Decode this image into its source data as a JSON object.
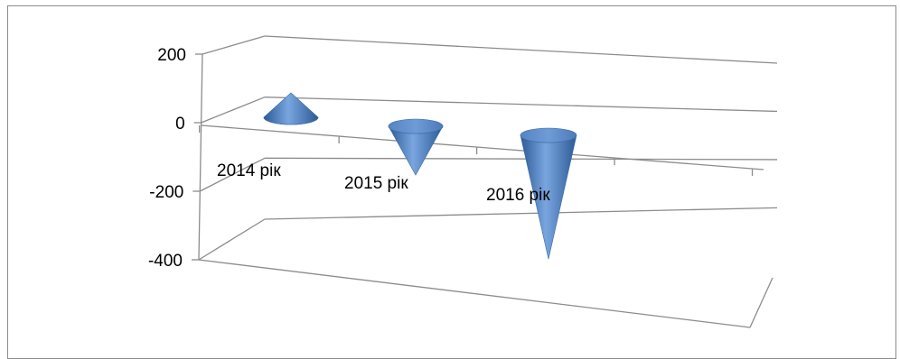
{
  "chart_data": {
    "type": "bar",
    "style": "3d-cone",
    "categories": [
      "2014 рік",
      "2015 рік",
      "2016 рік"
    ],
    "values": [
      75,
      -150,
      -380
    ],
    "yticks": [
      200,
      0,
      -200,
      -400
    ],
    "ylim": [
      -400,
      200
    ],
    "grid": true,
    "legend": "none",
    "colors": {
      "cone_light": "#7aa6e0",
      "cone_mid": "#4f81bd",
      "cone_dark": "#2c5a94",
      "grid": "#8c8c8c"
    }
  }
}
